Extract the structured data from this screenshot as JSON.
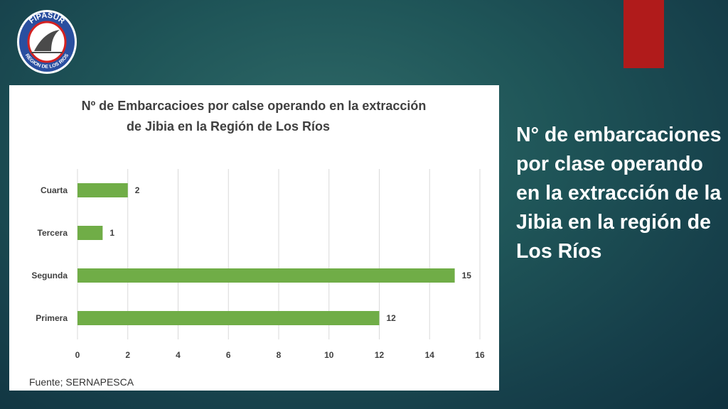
{
  "logo": {
    "top_text": "FIPASUR",
    "bottom_text": "REGION DE LOS RIOS"
  },
  "headline": "N° de embarcaciones por clase operando en la extracción de la Jibia en la región de Los Ríos",
  "source": "Fuente; SERNAPESCA",
  "colors": {
    "bar": "#70ad47",
    "accent": "#b01b1b"
  },
  "chart_data": {
    "type": "bar",
    "orientation": "horizontal",
    "title_lines": [
      "Nº de Embarcacioes por calse operando en la extracción",
      "de Jibia en la Región de Los Ríos"
    ],
    "categories": [
      "Cuarta",
      "Tercera",
      "Segunda",
      "Primera"
    ],
    "values": [
      2,
      1,
      15,
      12
    ],
    "xlim": [
      0,
      16
    ],
    "xticks": [
      0,
      2,
      4,
      6,
      8,
      10,
      12,
      14,
      16
    ],
    "grid": true,
    "legend": "none"
  }
}
